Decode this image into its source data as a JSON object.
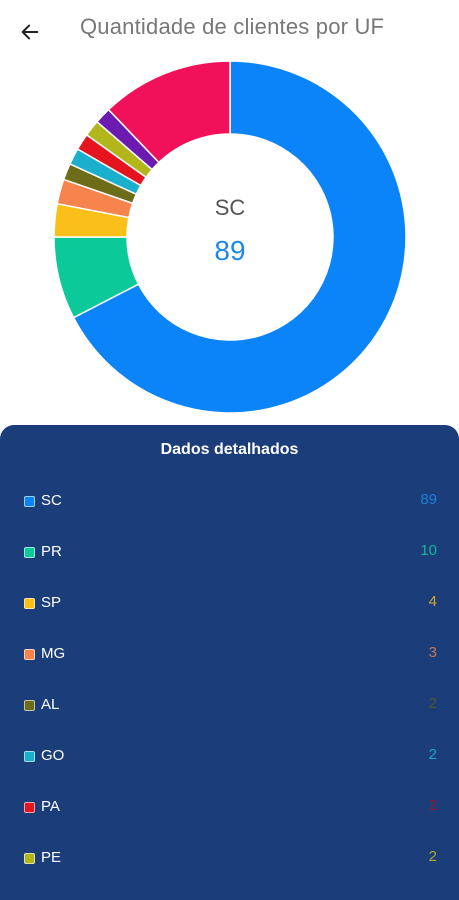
{
  "header": {
    "title": "Quantidade de clientes por UF",
    "back_icon": "arrow-left-icon"
  },
  "center": {
    "label": "SC",
    "value": "89"
  },
  "panel": {
    "title": "Dados detalhados"
  },
  "chart_data": {
    "type": "pie",
    "donut": true,
    "start_angle_deg": 0,
    "slices": [
      {
        "label": "SC",
        "value": 89,
        "color": "#0a84f8"
      },
      {
        "label": "PR",
        "value": 10,
        "color": "#0cc99a"
      },
      {
        "label": "SP",
        "value": 4,
        "color": "#fbbf1a"
      },
      {
        "label": "MG",
        "value": 3,
        "color": "#f6844c"
      },
      {
        "label": "AL",
        "value": 2,
        "color": "#6d6d19"
      },
      {
        "label": "GO",
        "value": 2,
        "color": "#1ab0cd"
      },
      {
        "label": "PA",
        "value": 2,
        "color": "#e4151f"
      },
      {
        "label": "PE",
        "value": 2,
        "color": "#b2b61a"
      },
      {
        "label": "",
        "value": 2,
        "color": "#6c1bb0"
      },
      {
        "label": "",
        "value": 16,
        "color": "#f0115a"
      }
    ]
  },
  "legend": [
    {
      "label": "SC",
      "value": "89",
      "color": "#0a84f8",
      "value_color": "#1e7fd8"
    },
    {
      "label": "PR",
      "value": "10",
      "color": "#0cc99a",
      "value_color": "#15b39a"
    },
    {
      "label": "SP",
      "value": "4",
      "color": "#fbbf1a",
      "value_color": "#d9a72a"
    },
    {
      "label": "MG",
      "value": "3",
      "color": "#f6844c",
      "value_color": "#c4785a"
    },
    {
      "label": "AL",
      "value": "2",
      "color": "#6d6d19",
      "value_color": "#4c5a2a"
    },
    {
      "label": "GO",
      "value": "2",
      "color": "#1ab0cd",
      "value_color": "#1aa4c8"
    },
    {
      "label": "PA",
      "value": "2",
      "color": "#e4151f",
      "value_color": "#8e1a2c"
    },
    {
      "label": "PE",
      "value": "2",
      "color": "#b2b61a",
      "value_color": "#a8a832"
    }
  ]
}
